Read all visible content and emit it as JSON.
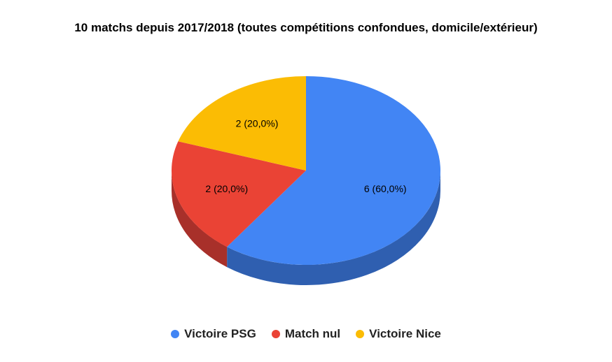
{
  "chart_data": {
    "type": "pie",
    "title": "10 matchs depuis 2017/2018 (toutes compétitions confondues, domicile/extérieur)",
    "categories": [
      "Victoire PSG",
      "Match nul",
      "Victoire Nice"
    ],
    "values": [
      6,
      2,
      2
    ],
    "labels": [
      "6 (60,0%)",
      "2 (20,0%)",
      "2 (20,0%)"
    ],
    "colors": [
      "#4285f4",
      "#ea4335",
      "#fbbc04"
    ],
    "side_colors": [
      "#2f5fb0",
      "#a8302a",
      "#b38600"
    ],
    "legend_position": "bottom",
    "style": "3d"
  }
}
